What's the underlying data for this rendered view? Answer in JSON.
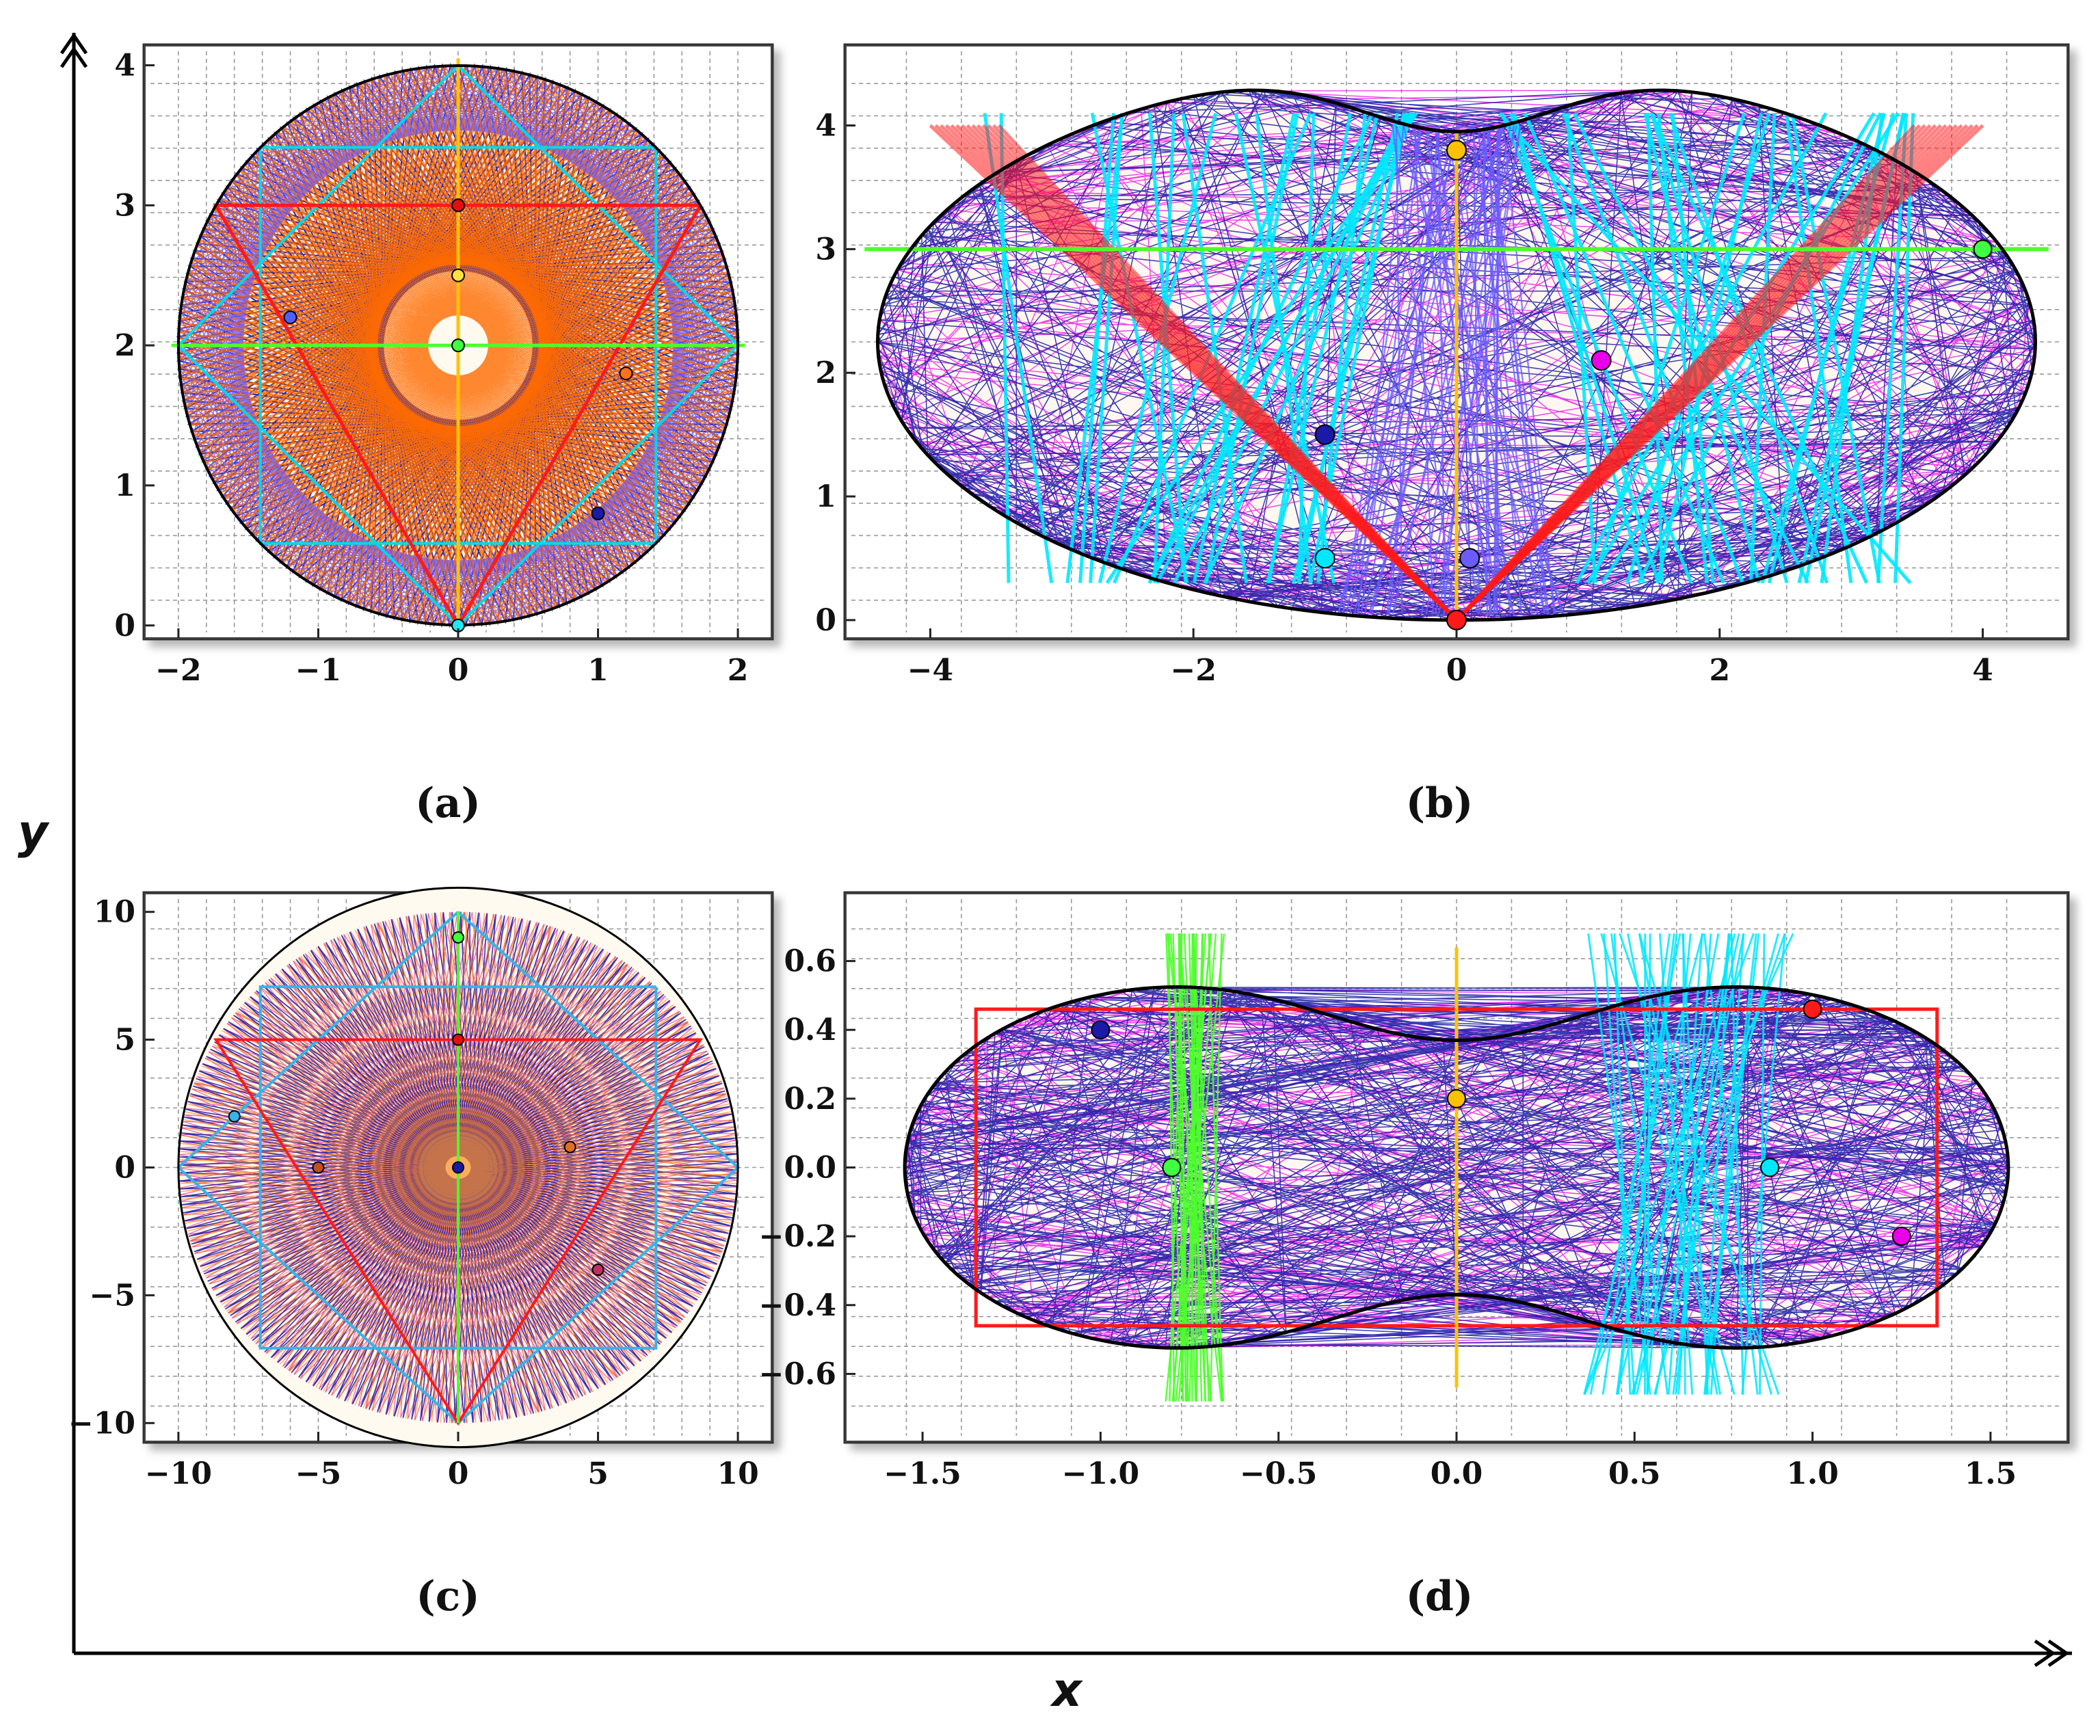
{
  "figure": {
    "x_axis_label": "x",
    "y_axis_label": "y"
  },
  "panels": [
    {
      "id": "a",
      "caption": "(a)",
      "boundary": "circle",
      "x_ticks": [
        "−2",
        "−1",
        "0",
        "1",
        "2"
      ],
      "y_ticks": [
        "0",
        "1",
        "2",
        "3",
        "4"
      ],
      "xlim": [
        -2.2,
        2.2
      ],
      "ylim": [
        -0.05,
        4.1
      ],
      "orbit_colors": [
        "#1a1aa6",
        "#ff6a00",
        "#6a5cff",
        "#00d8e8",
        "#ff1a1a",
        "#4dff2a",
        "#ffc107"
      ]
    },
    {
      "id": "b",
      "caption": "(b)",
      "boundary": "kidney",
      "x_ticks": [
        "−4",
        "−2",
        "0",
        "2",
        "4"
      ],
      "y_ticks": [
        "0",
        "1",
        "2",
        "3",
        "4"
      ],
      "xlim": [
        -4.6,
        4.6
      ],
      "ylim": [
        -0.1,
        4.6
      ],
      "orbit_colors": [
        "#1a1aa6",
        "#e800e8",
        "#00e8ff",
        "#6a5cff",
        "#ff1a1a",
        "#4dff2a",
        "#ffc107"
      ]
    },
    {
      "id": "c",
      "caption": "(c)",
      "boundary": "circle",
      "x_ticks": [
        "−10",
        "−5",
        "0",
        "5",
        "10"
      ],
      "y_ticks": [
        "−10",
        "−5",
        "0",
        "5",
        "10"
      ],
      "xlim": [
        -11,
        11
      ],
      "ylim": [
        -10.5,
        10.5
      ],
      "orbit_colors": [
        "#1a1aa6",
        "#ff6a00",
        "#e0208a",
        "#36b4e8",
        "#ff1a1a",
        "#4dff2a"
      ]
    },
    {
      "id": "d",
      "caption": "(d)",
      "boundary": "peanut",
      "x_ticks": [
        "−1.5",
        "−1.0",
        "−0.5",
        "0.0",
        "0.5",
        "1.0",
        "1.5"
      ],
      "y_ticks": [
        "−0.6",
        "−0.4",
        "−0.2",
        "0.0",
        "0.2",
        "0.4",
        "0.6"
      ],
      "xlim": [
        -1.7,
        1.7
      ],
      "ylim": [
        -0.78,
        0.78
      ],
      "orbit_colors": [
        "#1a1aa6",
        "#e800e8",
        "#00e8ff",
        "#4dff2a",
        "#ff1a1a",
        "#ffc107"
      ]
    }
  ]
}
